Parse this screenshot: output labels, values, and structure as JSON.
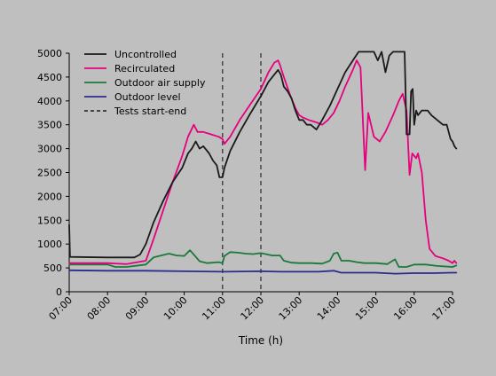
{
  "chart_data": {
    "type": "line",
    "title": "",
    "xlabel": "Time (h)",
    "ylabel": "",
    "xlim": [
      7,
      17
    ],
    "ylim": [
      0,
      5000
    ],
    "x_ticks": [
      7,
      8,
      9,
      10,
      11,
      12,
      13,
      14,
      15,
      16,
      17
    ],
    "x_tick_labels": [
      "07:00",
      "08:00",
      "09:00",
      "10:00",
      "11:00",
      "12:00",
      "13:00",
      "14:00",
      "15:00",
      "16:00",
      "17:00"
    ],
    "y_ticks": [
      0,
      500,
      1000,
      1500,
      2000,
      2500,
      3000,
      3500,
      4000,
      4500,
      5000
    ],
    "y_tick_labels": [
      "0",
      "500",
      "1000",
      "1500",
      "2000",
      "2500",
      "3000",
      "3500",
      "4000",
      "4500",
      "5000"
    ],
    "grid": false,
    "legend_position": "top-left",
    "series": [
      {
        "name": "Uncontrolled",
        "color": "#1a1a1a",
        "style": "solid",
        "points": [
          [
            7.0,
            1400
          ],
          [
            7.02,
            730
          ],
          [
            8.0,
            720
          ],
          [
            8.7,
            720
          ],
          [
            8.85,
            780
          ],
          [
            9.0,
            1000
          ],
          [
            9.2,
            1450
          ],
          [
            9.45,
            1900
          ],
          [
            9.7,
            2300
          ],
          [
            9.95,
            2600
          ],
          [
            10.1,
            2900
          ],
          [
            10.2,
            3000
          ],
          [
            10.3,
            3150
          ],
          [
            10.4,
            3000
          ],
          [
            10.5,
            3050
          ],
          [
            10.65,
            2900
          ],
          [
            10.75,
            2750
          ],
          [
            10.85,
            2650
          ],
          [
            10.92,
            2400
          ],
          [
            11.0,
            2400
          ],
          [
            11.05,
            2600
          ],
          [
            11.2,
            2950
          ],
          [
            11.45,
            3350
          ],
          [
            11.7,
            3700
          ],
          [
            12.0,
            4100
          ],
          [
            12.2,
            4400
          ],
          [
            12.35,
            4550
          ],
          [
            12.45,
            4650
          ],
          [
            12.52,
            4550
          ],
          [
            12.6,
            4300
          ],
          [
            12.7,
            4200
          ],
          [
            12.8,
            4050
          ],
          [
            12.9,
            3800
          ],
          [
            13.0,
            3600
          ],
          [
            13.1,
            3600
          ],
          [
            13.2,
            3500
          ],
          [
            13.3,
            3500
          ],
          [
            13.45,
            3400
          ],
          [
            13.6,
            3600
          ],
          [
            13.8,
            3900
          ],
          [
            14.0,
            4250
          ],
          [
            14.2,
            4600
          ],
          [
            14.4,
            4850
          ],
          [
            14.55,
            5030
          ],
          [
            14.8,
            5030
          ],
          [
            14.95,
            5030
          ],
          [
            15.05,
            4850
          ],
          [
            15.15,
            5030
          ],
          [
            15.25,
            4600
          ],
          [
            15.35,
            4950
          ],
          [
            15.45,
            5030
          ],
          [
            15.75,
            5030
          ],
          [
            15.8,
            3300
          ],
          [
            15.88,
            3300
          ],
          [
            15.92,
            4200
          ],
          [
            15.96,
            4250
          ],
          [
            16.0,
            3500
          ],
          [
            16.05,
            3800
          ],
          [
            16.1,
            3700
          ],
          [
            16.2,
            3800
          ],
          [
            16.35,
            3800
          ],
          [
            16.45,
            3700
          ],
          [
            16.6,
            3600
          ],
          [
            16.75,
            3500
          ],
          [
            16.85,
            3500
          ],
          [
            16.95,
            3200
          ],
          [
            17.0,
            3150
          ],
          [
            17.05,
            3050
          ],
          [
            17.1,
            3000
          ]
        ]
      },
      {
        "name": "Recirculated",
        "color": "#e6007e",
        "style": "solid",
        "points": [
          [
            7.0,
            600
          ],
          [
            8.0,
            600
          ],
          [
            8.5,
            580
          ],
          [
            9.0,
            650
          ],
          [
            9.2,
            1100
          ],
          [
            9.45,
            1700
          ],
          [
            9.7,
            2300
          ],
          [
            9.95,
            2850
          ],
          [
            10.1,
            3250
          ],
          [
            10.25,
            3500
          ],
          [
            10.35,
            3350
          ],
          [
            10.5,
            3350
          ],
          [
            10.7,
            3300
          ],
          [
            10.9,
            3250
          ],
          [
            11.0,
            3200
          ],
          [
            11.05,
            3100
          ],
          [
            11.2,
            3250
          ],
          [
            11.45,
            3600
          ],
          [
            11.7,
            3900
          ],
          [
            12.0,
            4250
          ],
          [
            12.2,
            4600
          ],
          [
            12.35,
            4800
          ],
          [
            12.45,
            4850
          ],
          [
            12.5,
            4750
          ],
          [
            12.6,
            4500
          ],
          [
            12.75,
            4150
          ],
          [
            12.9,
            3850
          ],
          [
            13.0,
            3700
          ],
          [
            13.1,
            3650
          ],
          [
            13.25,
            3600
          ],
          [
            13.45,
            3550
          ],
          [
            13.6,
            3500
          ],
          [
            13.75,
            3600
          ],
          [
            13.9,
            3750
          ],
          [
            14.05,
            4000
          ],
          [
            14.2,
            4300
          ],
          [
            14.4,
            4650
          ],
          [
            14.5,
            4850
          ],
          [
            14.6,
            4700
          ],
          [
            14.72,
            2550
          ],
          [
            14.8,
            3750
          ],
          [
            14.95,
            3250
          ],
          [
            15.1,
            3150
          ],
          [
            15.25,
            3350
          ],
          [
            15.45,
            3700
          ],
          [
            15.6,
            4000
          ],
          [
            15.7,
            4150
          ],
          [
            15.8,
            3800
          ],
          [
            15.88,
            2450
          ],
          [
            15.95,
            2900
          ],
          [
            16.05,
            2800
          ],
          [
            16.1,
            2900
          ],
          [
            16.2,
            2500
          ],
          [
            16.3,
            1500
          ],
          [
            16.4,
            900
          ],
          [
            16.55,
            750
          ],
          [
            16.75,
            700
          ],
          [
            16.9,
            650
          ],
          [
            17.0,
            600
          ],
          [
            17.05,
            650
          ],
          [
            17.1,
            600
          ]
        ]
      },
      {
        "name": "Outdoor air supply",
        "color": "#1a7a3c",
        "style": "solid",
        "points": [
          [
            7.0,
            570
          ],
          [
            8.0,
            570
          ],
          [
            8.2,
            520
          ],
          [
            8.5,
            520
          ],
          [
            9.0,
            570
          ],
          [
            9.2,
            720
          ],
          [
            9.4,
            760
          ],
          [
            9.6,
            800
          ],
          [
            9.8,
            760
          ],
          [
            10.0,
            750
          ],
          [
            10.15,
            870
          ],
          [
            10.25,
            780
          ],
          [
            10.4,
            640
          ],
          [
            10.6,
            600
          ],
          [
            10.9,
            620
          ],
          [
            11.0,
            600
          ],
          [
            11.05,
            750
          ],
          [
            11.2,
            830
          ],
          [
            11.4,
            820
          ],
          [
            11.6,
            800
          ],
          [
            11.8,
            790
          ],
          [
            12.0,
            810
          ],
          [
            12.3,
            760
          ],
          [
            12.5,
            760
          ],
          [
            12.6,
            650
          ],
          [
            12.8,
            610
          ],
          [
            13.0,
            600
          ],
          [
            13.3,
            600
          ],
          [
            13.6,
            590
          ],
          [
            13.8,
            650
          ],
          [
            13.9,
            800
          ],
          [
            14.0,
            820
          ],
          [
            14.1,
            650
          ],
          [
            14.3,
            650
          ],
          [
            14.5,
            620
          ],
          [
            14.7,
            600
          ],
          [
            15.0,
            600
          ],
          [
            15.3,
            580
          ],
          [
            15.5,
            680
          ],
          [
            15.6,
            520
          ],
          [
            15.8,
            520
          ],
          [
            16.0,
            570
          ],
          [
            16.3,
            570
          ],
          [
            16.6,
            540
          ],
          [
            17.0,
            520
          ],
          [
            17.1,
            550
          ]
        ]
      },
      {
        "name": "Outdoor level",
        "color": "#2b2b8f",
        "style": "solid",
        "points": [
          [
            7.0,
            450
          ],
          [
            8.0,
            440
          ],
          [
            9.0,
            440
          ],
          [
            10.0,
            430
          ],
          [
            11.0,
            420
          ],
          [
            12.0,
            430
          ],
          [
            12.5,
            420
          ],
          [
            13.0,
            420
          ],
          [
            13.5,
            420
          ],
          [
            13.9,
            440
          ],
          [
            14.1,
            400
          ],
          [
            15.0,
            400
          ],
          [
            15.5,
            380
          ],
          [
            16.0,
            390
          ],
          [
            16.5,
            390
          ],
          [
            17.0,
            400
          ],
          [
            17.1,
            400
          ]
        ]
      },
      {
        "name": "Tests start-end",
        "color": "#333333",
        "style": "dashed",
        "vertical_lines_x": [
          11.0,
          12.0
        ]
      }
    ]
  }
}
